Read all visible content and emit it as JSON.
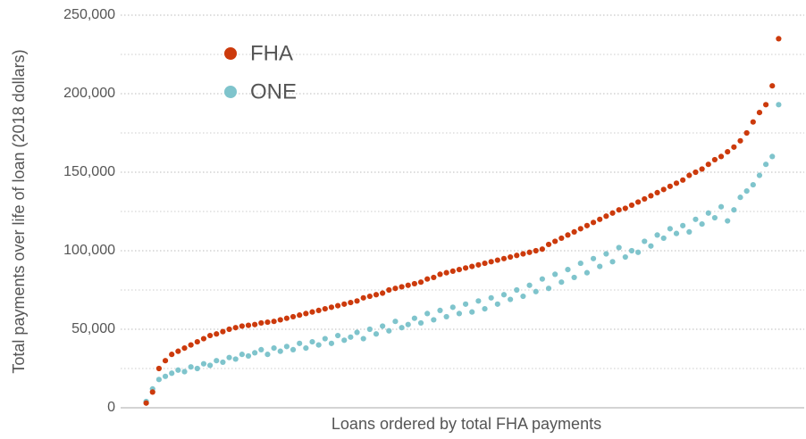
{
  "chart_data": {
    "type": "scatter",
    "y_label": "Total payments over life of loan (2018 dollars)",
    "x_label": "Loans ordered by total FHA payments",
    "x": [
      1,
      2,
      3,
      4,
      5,
      6,
      7,
      8,
      9,
      10,
      11,
      12,
      13,
      14,
      15,
      16,
      17,
      18,
      19,
      20,
      21,
      22,
      23,
      24,
      25,
      26,
      27,
      28,
      29,
      30,
      31,
      32,
      33,
      34,
      35,
      36,
      37,
      38,
      39,
      40,
      41,
      42,
      43,
      44,
      45,
      46,
      47,
      48,
      49,
      50,
      51,
      52,
      53,
      54,
      55,
      56,
      57,
      58,
      59,
      60,
      61,
      62,
      63,
      64,
      65,
      66,
      67,
      68,
      69,
      70,
      71,
      72,
      73,
      74,
      75,
      76,
      77,
      78,
      79,
      80,
      81,
      82,
      83,
      84,
      85,
      86,
      87,
      88,
      89,
      90,
      91,
      92,
      93,
      94,
      95,
      96,
      97,
      98,
      99,
      100
    ],
    "xlim": [
      -3,
      104
    ],
    "ylim": [
      0,
      250000
    ],
    "yticks": [
      0,
      {
        "value": 50000,
        "label": "50,000"
      },
      {
        "value": 100000,
        "label": "100,000"
      },
      {
        "value": 150000,
        "label": "150,000"
      },
      {
        "value": 200000,
        "label": "200,000"
      },
      {
        "value": 250000,
        "label": "250,000"
      }
    ],
    "y_minor_ticks": [
      25000,
      75000,
      125000,
      175000,
      225000
    ],
    "grid": true,
    "legend": "top-left",
    "series": [
      {
        "name": "FHA",
        "color": "#cc3a0c",
        "values": [
          3000,
          10000,
          25000,
          30000,
          34000,
          36000,
          38000,
          40000,
          42000,
          44000,
          46000,
          47000,
          48500,
          50000,
          51000,
          52000,
          52500,
          53000,
          54000,
          54500,
          55000,
          56000,
          57000,
          58000,
          59000,
          60000,
          61000,
          62000,
          63000,
          64000,
          65000,
          66000,
          67000,
          68000,
          70000,
          71000,
          72000,
          73000,
          75000,
          76000,
          77000,
          78000,
          79000,
          80000,
          82000,
          83000,
          85000,
          86000,
          87000,
          88000,
          89000,
          90000,
          91000,
          92000,
          93000,
          94000,
          95000,
          96000,
          97000,
          98000,
          99000,
          100000,
          101000,
          104000,
          106000,
          108000,
          110000,
          112000,
          114000,
          116000,
          118000,
          120000,
          122000,
          124000,
          126000,
          127000,
          129000,
          131000,
          133000,
          135000,
          137000,
          139000,
          141000,
          143000,
          145000,
          148000,
          150000,
          152000,
          155000,
          158000,
          160000,
          163000,
          166000,
          170000,
          175000,
          182000,
          188000,
          193000,
          205000,
          235000
        ]
      },
      {
        "name": "ONE",
        "color": "#7fc4cc",
        "values": [
          4000,
          12000,
          18000,
          20000,
          22000,
          24000,
          23000,
          26000,
          25000,
          28000,
          27000,
          30000,
          29000,
          32000,
          31000,
          34000,
          33000,
          35000,
          37000,
          34000,
          38000,
          36000,
          39000,
          37000,
          41000,
          38000,
          42000,
          40000,
          44000,
          41000,
          46000,
          43000,
          45000,
          48000,
          44000,
          50000,
          47000,
          52000,
          49000,
          55000,
          51000,
          53000,
          57000,
          54000,
          60000,
          56000,
          62000,
          58000,
          64000,
          60000,
          66000,
          61000,
          68000,
          63000,
          70000,
          66000,
          72000,
          69000,
          75000,
          71000,
          78000,
          74000,
          82000,
          76000,
          85000,
          80000,
          88000,
          83000,
          92000,
          86000,
          95000,
          90000,
          98000,
          93000,
          102000,
          96000,
          100000,
          99000,
          106000,
          103000,
          110000,
          108000,
          114000,
          111000,
          116000,
          112000,
          120000,
          117000,
          124000,
          121000,
          128000,
          119000,
          126000,
          134000,
          138000,
          142000,
          148000,
          155000,
          160000,
          193000
        ]
      }
    ]
  }
}
